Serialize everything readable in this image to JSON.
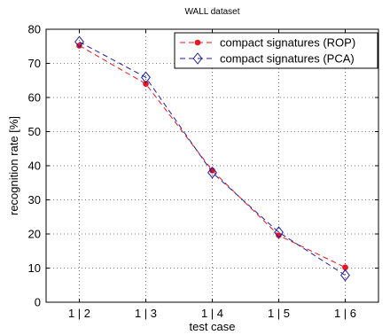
{
  "chart_data": {
    "type": "line",
    "title": "WALL dataset",
    "xlabel": "test case",
    "ylabel": "recognition rate [%]",
    "categories": [
      "1 | 2",
      "1 | 3",
      "1 | 4",
      "1 | 5",
      "1 | 6"
    ],
    "ylim": [
      0,
      80
    ],
    "yticks": [
      0,
      10,
      20,
      30,
      40,
      50,
      60,
      70,
      80
    ],
    "grid": true,
    "legend_position": "top-right",
    "series": [
      {
        "name": "compact signatures (ROP)",
        "values": [
          75.2,
          64.0,
          38.6,
          19.6,
          10.2
        ],
        "color": "#e8151e",
        "line_style": "dashed",
        "marker": "filled-dot"
      },
      {
        "name": "compact signatures (PCA)",
        "values": [
          76.3,
          65.9,
          38.0,
          20.5,
          7.9
        ],
        "color": "#1e1e9a",
        "line_style": "dashed",
        "marker": "open-diamond"
      }
    ]
  }
}
